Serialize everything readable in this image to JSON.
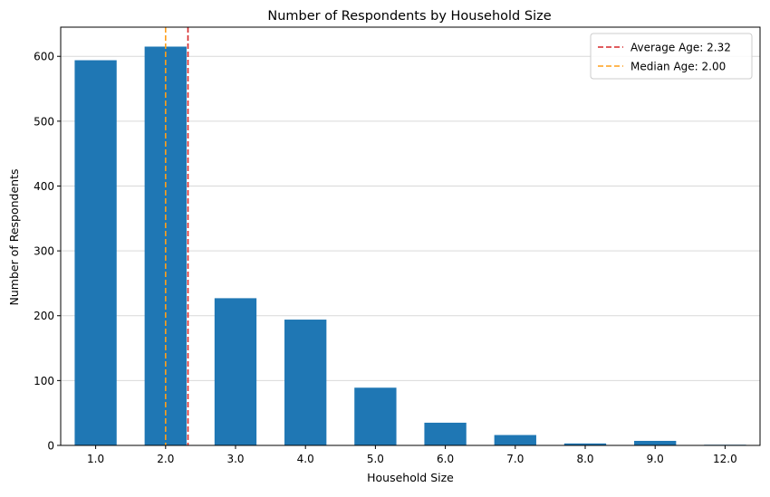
{
  "chart_data": {
    "type": "bar",
    "title": "Number of Respondents by Household Size",
    "xlabel": "Household Size",
    "ylabel": "Number of Respondents",
    "categories": [
      "1.0",
      "2.0",
      "3.0",
      "4.0",
      "5.0",
      "6.0",
      "7.0",
      "8.0",
      "9.0",
      "12.0"
    ],
    "values": [
      594,
      615,
      227,
      194,
      89,
      35,
      16,
      3,
      7,
      1
    ],
    "ylim": [
      0,
      645
    ],
    "yticks": [
      0,
      100,
      200,
      300,
      400,
      500,
      600
    ],
    "grid": "y",
    "bar_color": "#1f77b4",
    "reference_lines": [
      {
        "label": "Average Age: 2.32",
        "x": 2.32,
        "color": "#d62728",
        "style": "dashed"
      },
      {
        "label": "Median Age: 2.00",
        "x": 2.0,
        "color": "#ff9f1a",
        "style": "dashed"
      }
    ],
    "legend_position": "top-right"
  }
}
